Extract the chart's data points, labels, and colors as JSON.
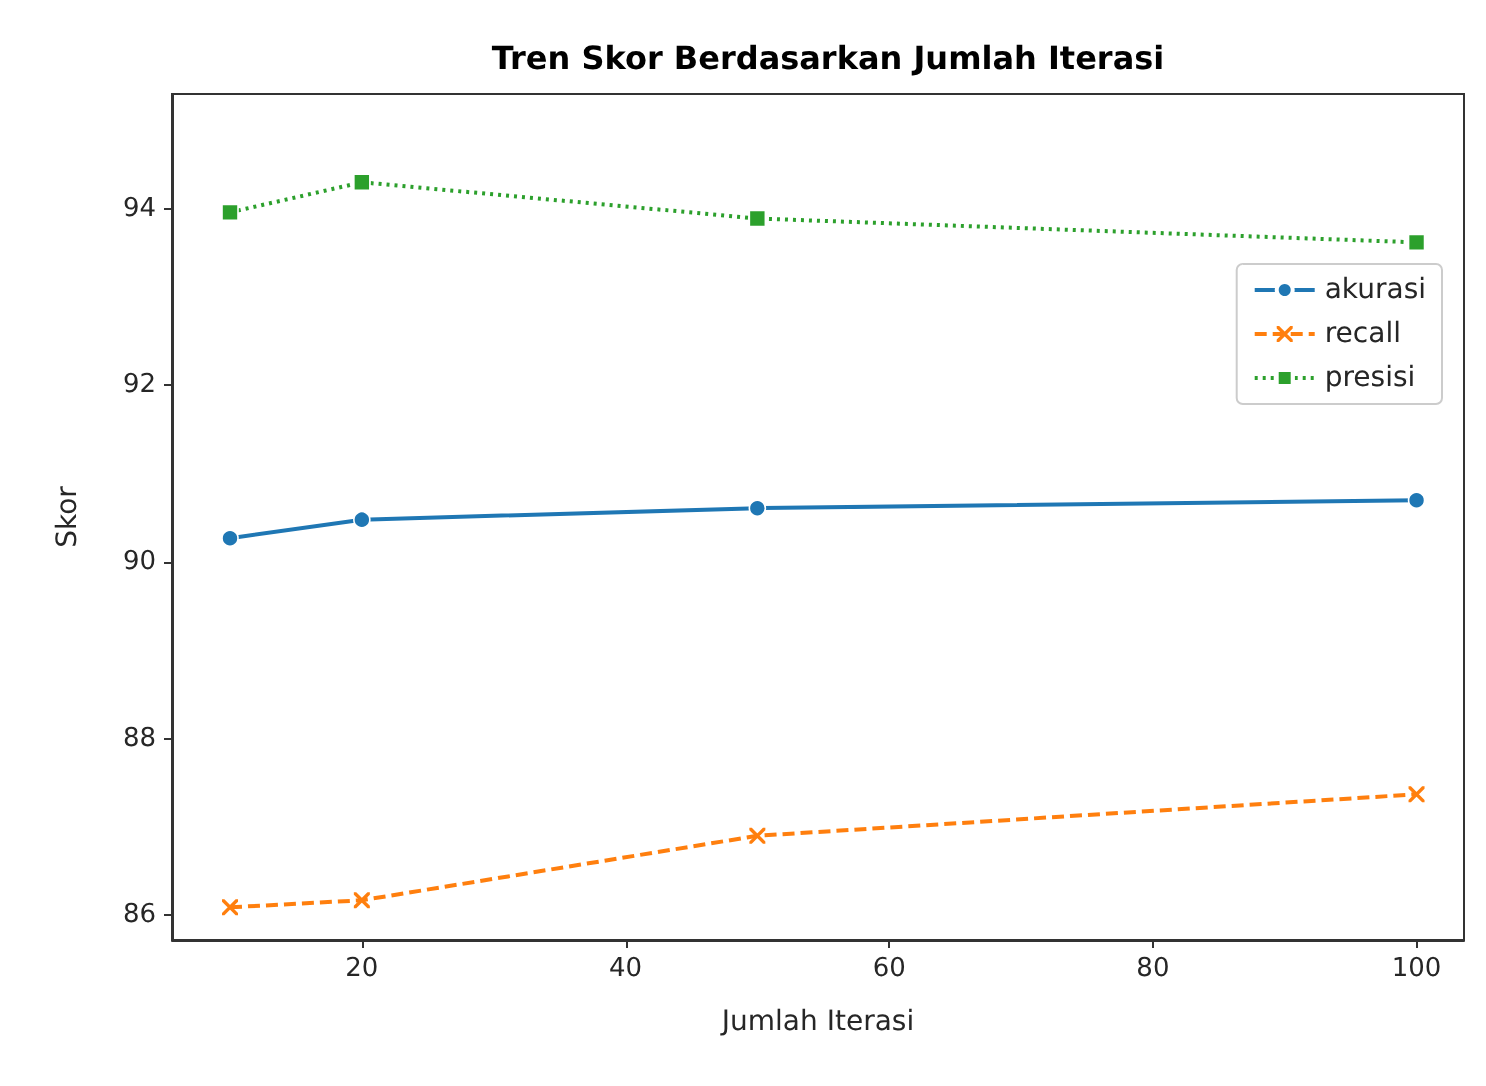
{
  "chart_data": {
    "type": "line",
    "title": "Tren Skor Berdasarkan Jumlah Iterasi",
    "xlabel": "Jumlah Iterasi",
    "ylabel": "Skor",
    "x": [
      10,
      20,
      50,
      100
    ],
    "series": [
      {
        "name": "akurasi",
        "color": "#1f77b4",
        "marker": "circle",
        "line_style": "solid",
        "values": [
          90.27,
          90.48,
          90.61,
          90.7
        ]
      },
      {
        "name": "recall",
        "color": "#ff7f0e",
        "marker": "cross",
        "line_style": "dashed",
        "values": [
          86.09,
          86.17,
          86.9,
          87.37
        ]
      },
      {
        "name": "presisi",
        "color": "#2ca02c",
        "marker": "square",
        "line_style": "dotted",
        "values": [
          93.96,
          94.3,
          93.89,
          93.62
        ]
      }
    ],
    "xlim": [
      5.6,
      103.6
    ],
    "xticks": [
      20,
      40,
      60,
      80,
      100
    ],
    "ylim": [
      85.72,
      95.3
    ],
    "yticks": [
      86,
      88,
      90,
      92,
      94
    ],
    "grid": false,
    "legend": "top right"
  }
}
